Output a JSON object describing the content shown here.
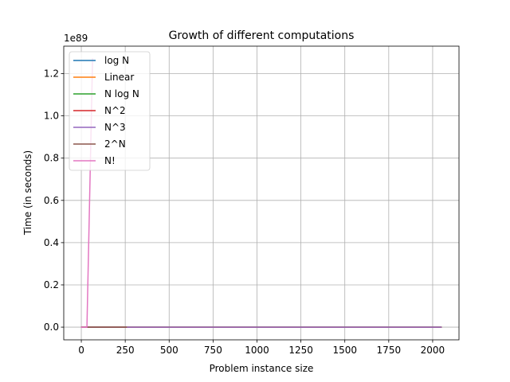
{
  "chart_data": {
    "type": "line",
    "title": "Growth of different computations",
    "xlabel": "Problem instance size",
    "ylabel": "Time (in seconds)",
    "y_offset_text": "1e89",
    "xlim": [
      -100,
      2150
    ],
    "ylim": [
      -0.06,
      1.33
    ],
    "y_scale_note": "y values are in units of 1e89",
    "grid": true,
    "legend_position": "top-left",
    "x_ticks": [
      0,
      250,
      500,
      750,
      1000,
      1250,
      1500,
      1750,
      2000
    ],
    "x_tick_labels": [
      "0",
      "250",
      "500",
      "750",
      "1000",
      "1250",
      "1500",
      "1750",
      "2000"
    ],
    "y_ticks": [
      0.0,
      0.2,
      0.4,
      0.6,
      0.8,
      1.0,
      1.2
    ],
    "y_tick_labels": [
      "0.0",
      "0.2",
      "0.4",
      "0.6",
      "0.8",
      "1.0",
      "1.2"
    ],
    "series": [
      {
        "name": "log N",
        "color": "#1f77b4",
        "x": [
          1,
          2048
        ],
        "y": [
          0,
          0
        ]
      },
      {
        "name": "Linear",
        "color": "#ff7f0e",
        "x": [
          1,
          2048
        ],
        "y": [
          0,
          0
        ]
      },
      {
        "name": "N log N",
        "color": "#2ca02c",
        "x": [
          1,
          2048
        ],
        "y": [
          0,
          0
        ]
      },
      {
        "name": "N^2",
        "color": "#d62728",
        "x": [
          1,
          2048
        ],
        "y": [
          0,
          0
        ]
      },
      {
        "name": "N^3",
        "color": "#9467bd",
        "x": [
          1,
          2048
        ],
        "y": [
          0,
          0
        ]
      },
      {
        "name": "2^N",
        "color": "#8c564b",
        "x": [
          1,
          256
        ],
        "y": [
          0,
          0
        ]
      },
      {
        "name": "N!",
        "color": "#e377c2",
        "x": [
          1,
          32,
          64
        ],
        "y": [
          0,
          0,
          1.27
        ]
      }
    ]
  }
}
